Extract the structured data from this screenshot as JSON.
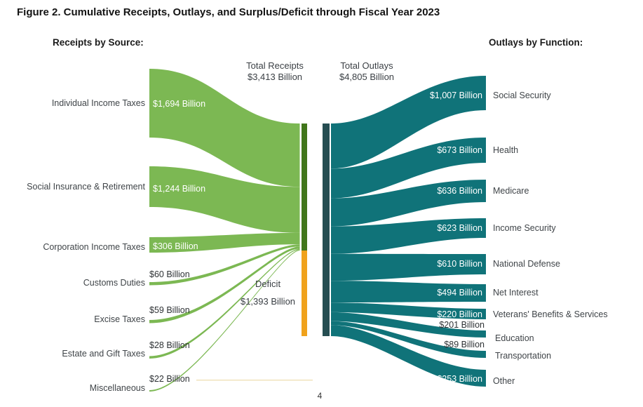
{
  "page_number": "4",
  "chart_data": {
    "type": "sankey",
    "title": "Figure 2. Cumulative Receipts, Outlays, and Surplus/Deficit through Fiscal Year 2023",
    "receipts_header": "Receipts by Source:",
    "outlays_header": "Outlays by Function:",
    "totals": {
      "receipts": {
        "label": "Total Receipts",
        "value": "$3,413 Billion",
        "amount_billions": 3413
      },
      "outlays": {
        "label": "Total Outlays",
        "value": "$4,805 Billion",
        "amount_billions": 4805
      },
      "deficit": {
        "label": "Deficit",
        "value": "$1,393 Billion",
        "amount_billions": 1393
      }
    },
    "receipts": [
      {
        "name": "Individual Income Taxes",
        "value_label": "$1,694 Billion",
        "amount_billions": 1694
      },
      {
        "name": "Social Insurance & Retirement",
        "value_label": "$1,244 Billion",
        "amount_billions": 1244
      },
      {
        "name": "Corporation Income Taxes",
        "value_label": "$306 Billion",
        "amount_billions": 306
      },
      {
        "name": "Customs Duties",
        "value_label": "$60 Billion",
        "amount_billions": 60
      },
      {
        "name": "Excise Taxes",
        "value_label": "$59 Billion",
        "amount_billions": 59
      },
      {
        "name": "Estate and Gift Taxes",
        "value_label": "$28 Billion",
        "amount_billions": 28
      },
      {
        "name": "Miscellaneous",
        "value_label": "$22 Billion",
        "amount_billions": 22
      }
    ],
    "outlays": [
      {
        "name": "Social Security",
        "value_label": "$1,007 Billion",
        "amount_billions": 1007
      },
      {
        "name": "Health",
        "value_label": "$673 Billion",
        "amount_billions": 673
      },
      {
        "name": "Medicare",
        "value_label": "$636 Billion",
        "amount_billions": 636
      },
      {
        "name": "Income Security",
        "value_label": "$623 Billion",
        "amount_billions": 623
      },
      {
        "name": "National Defense",
        "value_label": "$610 Billion",
        "amount_billions": 610
      },
      {
        "name": "Net Interest",
        "value_label": "$494 Billion",
        "amount_billions": 494
      },
      {
        "name": "Veterans' Benefits & Services",
        "value_label": "$220 Billion",
        "amount_billions": 220
      },
      {
        "name": "Education",
        "value_label": "$201 Billion",
        "amount_billions": 201
      },
      {
        "name": "Transportation",
        "value_label": "$89 Billion",
        "amount_billions": 89
      },
      {
        "name": "Other",
        "value_label": "$253 Billion",
        "amount_billions": 253
      }
    ],
    "colors": {
      "receipts_flow": "#7cb853",
      "receipts_bar": "#41761b",
      "deficit_bar": "#f0a21c",
      "outlays_flow": "#107379",
      "outlays_bar": "#264e52",
      "misc_trace": "#ecd9a4"
    },
    "legend_position": "none",
    "grid": false
  }
}
